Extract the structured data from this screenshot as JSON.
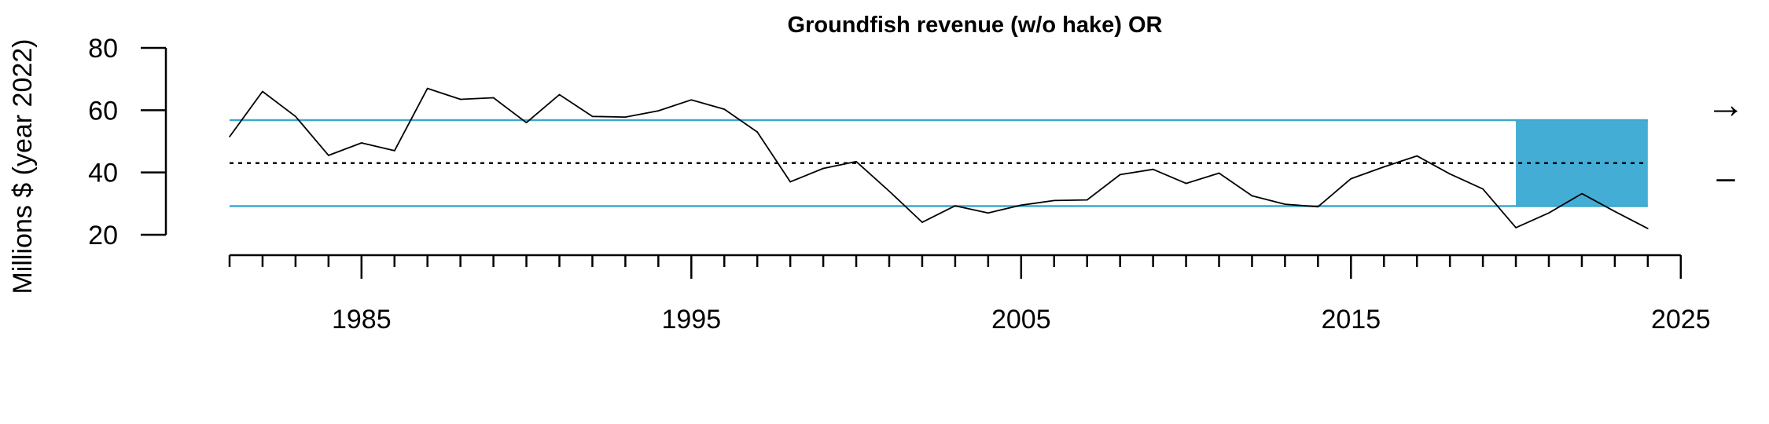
{
  "chart_data": {
    "type": "line",
    "title": "Groundfish revenue (w/o hake) OR",
    "xlabel": "",
    "ylabel": "Millions $ (year 2022)",
    "xlim": [
      1981,
      2024
    ],
    "ylim": [
      20,
      80
    ],
    "yticks": [
      20,
      40,
      60,
      80
    ],
    "xticks_major": [
      1985,
      1995,
      2005,
      2015,
      2025
    ],
    "series": [
      {
        "x": [
          1981,
          1982,
          1983,
          1984,
          1985,
          1986,
          1987,
          1988,
          1989,
          1990,
          1991,
          1992,
          1993,
          1994,
          1995,
          1996,
          1997,
          1998,
          1999,
          2000,
          2001,
          2002,
          2003,
          2004,
          2005,
          2006,
          2007,
          2008,
          2009,
          2010,
          2011,
          2012,
          2013,
          2014,
          2015,
          2016,
          2017,
          2018,
          2019,
          2020,
          2021,
          2022,
          2023,
          2024
        ],
        "y": [
          51.5,
          66,
          58,
          45.5,
          49.5,
          47,
          67,
          63.5,
          64,
          56,
          65,
          58,
          57.8,
          59.8,
          63.3,
          60.3,
          53,
          37,
          41.3,
          43.5,
          34,
          24,
          29.3,
          27,
          29.5,
          31,
          31.2,
          39.3,
          41,
          36.5,
          39.8,
          32.5,
          29.8,
          29,
          38,
          41.8,
          45.3,
          39.5,
          34.7,
          22.3,
          27,
          33.2,
          27.5,
          22
        ],
        "color": "#000000"
      }
    ],
    "reference_lines": {
      "mean": 43.0,
      "upper_sd": 56.8,
      "lower_sd": 29.2,
      "line_color": "#3fa8cc"
    },
    "shaded_region": {
      "x_range": [
        2020,
        2024
      ],
      "y_range": [
        29.2,
        56.8
      ],
      "color": "#44add5"
    },
    "indicators": {
      "trend": "→",
      "mean_status": "–"
    }
  }
}
